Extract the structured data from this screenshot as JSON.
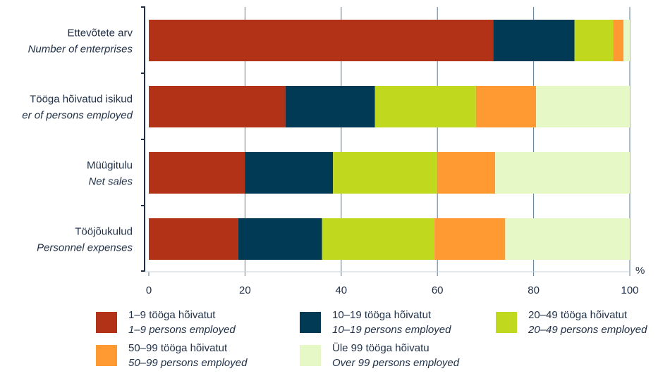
{
  "chart_data": {
    "type": "bar",
    "orientation": "horizontal",
    "stacked": true,
    "categories": [
      {
        "et": "Ettevõtete arv",
        "en": "Number of enterprises"
      },
      {
        "et": "Tööga hõivatud isikud",
        "en": "er of persons employed"
      },
      {
        "et": "Müügitulu",
        "en": "Net sales"
      },
      {
        "et": "Tööjõukulud",
        "en": "Personnel expenses"
      }
    ],
    "series": [
      {
        "name_et": "1–9 tööga hõivatut",
        "name_en": "1–9 persons employed",
        "color": "#B23218",
        "values": [
          71.6,
          28.4,
          20.0,
          18.6
        ]
      },
      {
        "name_et": "10–19 tööga hõivatut",
        "name_en": "10–19 persons employed",
        "color": "#003A54",
        "values": [
          16.9,
          18.6,
          18.3,
          17.4
        ]
      },
      {
        "name_et": "20–49 tööga hõivatut",
        "name_en": "20–49 persons employed",
        "color": "#C0D81E",
        "values": [
          8.0,
          21.0,
          21.7,
          23.4
        ]
      },
      {
        "name_et": "50–99 tööga hõivatut",
        "name_en": "50–99 persons employed",
        "color": "#FF9A33",
        "values": [
          2.2,
          12.5,
          12.0,
          14.7
        ]
      },
      {
        "name_et": "Üle 99 tööga hõivatu",
        "name_en": "Over 99 persons employed",
        "color": "#E6F8C6",
        "values": [
          1.3,
          19.5,
          28.0,
          25.9
        ]
      }
    ],
    "xlim": [
      0,
      100
    ],
    "xticks": [
      0,
      20,
      40,
      60,
      80,
      100
    ],
    "x_unit": "%",
    "grid": "vertical",
    "legend_position": "bottom"
  }
}
